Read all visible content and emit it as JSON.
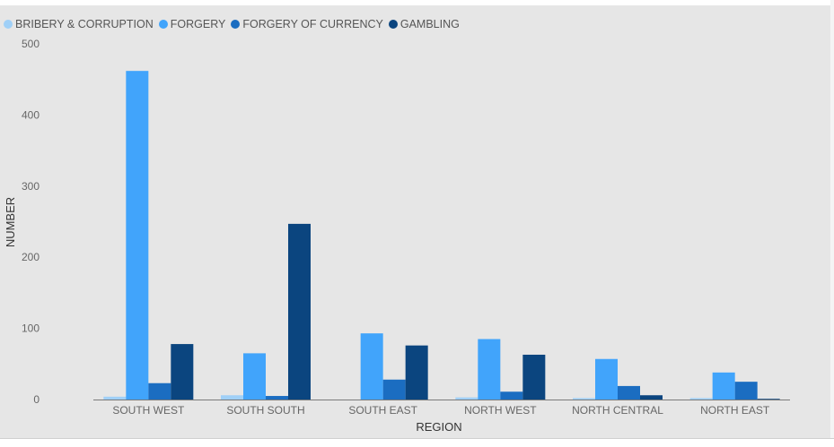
{
  "chart_data": {
    "type": "bar",
    "title": "",
    "xlabel": "REGION",
    "ylabel": "NUMBER",
    "ylim": [
      0,
      500
    ],
    "yticks": [
      0,
      100,
      200,
      300,
      400,
      500
    ],
    "grid": false,
    "legend_position": "top-left",
    "categories": [
      "SOUTH WEST",
      "SOUTH SOUTH",
      "SOUTH EAST",
      "NORTH WEST",
      "NORTH CENTRAL",
      "NORTH EAST"
    ],
    "series": [
      {
        "name": "BRIBERY & CORRUPTION",
        "color": "#a0d0f7",
        "values": [
          4,
          6,
          0,
          3,
          2,
          2
        ]
      },
      {
        "name": "FORGERY",
        "color": "#41a4fb",
        "values": [
          462,
          65,
          93,
          85,
          57,
          38
        ]
      },
      {
        "name": "FORGERY OF CURRENCY",
        "color": "#1b6dc1",
        "values": [
          23,
          5,
          28,
          11,
          19,
          25
        ]
      },
      {
        "name": "GAMBLING",
        "color": "#0b457f",
        "values": [
          78,
          247,
          76,
          63,
          6,
          1
        ]
      }
    ]
  }
}
